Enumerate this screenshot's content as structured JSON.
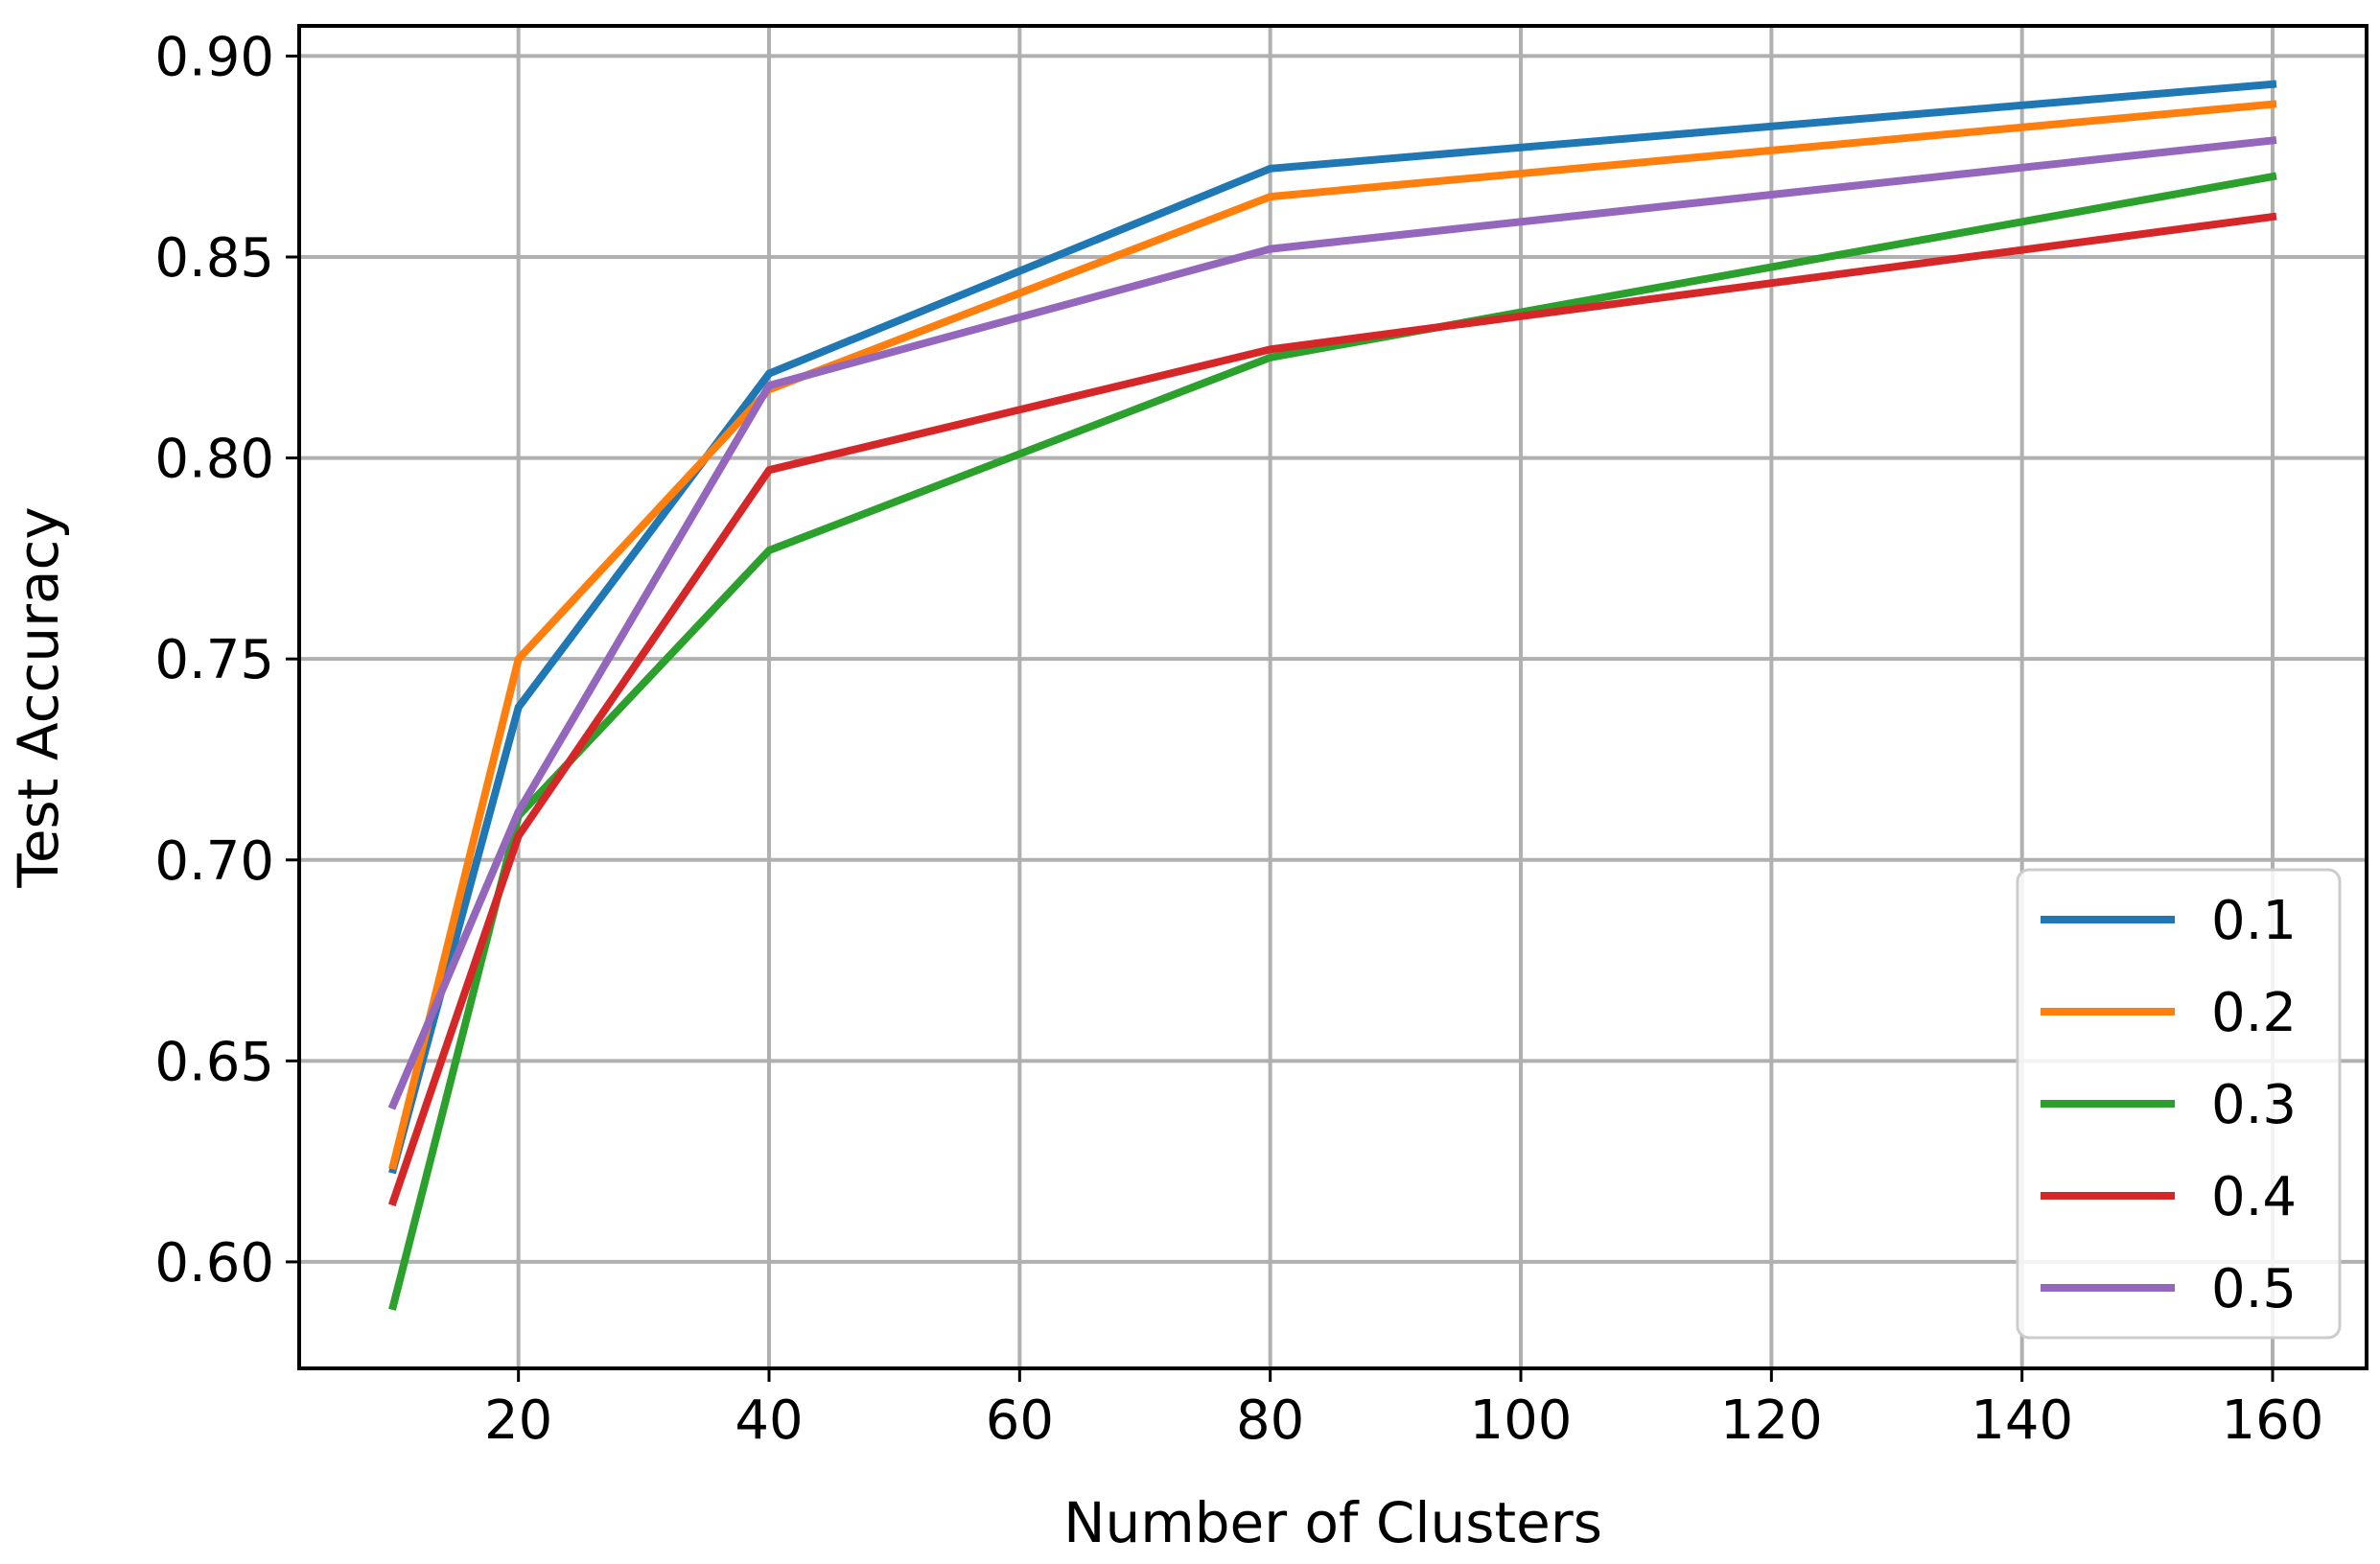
{
  "chart_data": {
    "type": "line",
    "title": "",
    "xlabel": "Number of Clusters",
    "ylabel": "Test Accuracy",
    "x": [
      10,
      20,
      40,
      80,
      160
    ],
    "xlim": [
      2.5,
      167.5
    ],
    "ylim": [
      0.5735,
      0.9075
    ],
    "xticks": [
      20,
      40,
      60,
      80,
      100,
      120,
      140,
      160
    ],
    "yticks": [
      0.6,
      0.65,
      0.7,
      0.75,
      0.8,
      0.85,
      0.9
    ],
    "xtick_labels": [
      "20",
      "40",
      "60",
      "80",
      "100",
      "120",
      "140",
      "160"
    ],
    "ytick_labels": [
      "0.60",
      "0.65",
      "0.70",
      "0.75",
      "0.80",
      "0.85",
      "0.90"
    ],
    "grid": true,
    "legend_position": "lower-right",
    "series": [
      {
        "name": "0.1",
        "color": "#1f77b4",
        "values": [
          0.623,
          0.738,
          0.821,
          0.872,
          0.893
        ]
      },
      {
        "name": "0.2",
        "color": "#ff7f0e",
        "values": [
          0.624,
          0.75,
          0.817,
          0.865,
          0.888
        ]
      },
      {
        "name": "0.3",
        "color": "#2ca02c",
        "values": [
          0.589,
          0.711,
          0.777,
          0.825,
          0.87
        ]
      },
      {
        "name": "0.4",
        "color": "#d62728",
        "values": [
          0.615,
          0.706,
          0.797,
          0.827,
          0.86
        ]
      },
      {
        "name": "0.5",
        "color": "#9467bd",
        "values": [
          0.639,
          0.712,
          0.818,
          0.852,
          0.879
        ]
      }
    ]
  }
}
